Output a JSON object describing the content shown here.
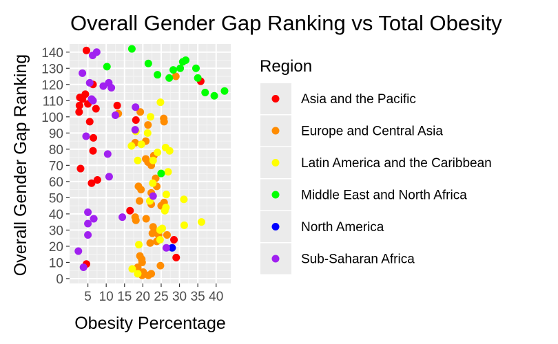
{
  "chart_data": {
    "type": "scatter",
    "title": "Overall Gender Gap Ranking vs Total Obesity",
    "xlabel": "Obesity Percentage",
    "ylabel": "Overall Gender Gap Ranking",
    "xlim": [
      0,
      44
    ],
    "ylim": [
      -3,
      145
    ],
    "x_ticks": [
      5,
      10,
      15,
      20,
      25,
      30,
      35,
      40
    ],
    "y_ticks": [
      0,
      10,
      20,
      30,
      40,
      50,
      60,
      70,
      80,
      90,
      100,
      110,
      120,
      130,
      140
    ],
    "grid": true,
    "legend": {
      "title": "Region",
      "placement": "right"
    },
    "series": [
      {
        "name": "Asia and the Pacific",
        "color": "#ff0000",
        "points": [
          [
            4.6,
            141
          ],
          [
            2.8,
            112
          ],
          [
            3.5,
            111
          ],
          [
            5.0,
            108
          ],
          [
            2.7,
            107
          ],
          [
            2.6,
            103
          ],
          [
            4.3,
            114
          ],
          [
            6.4,
            120
          ],
          [
            7.2,
            105
          ],
          [
            5.5,
            97
          ],
          [
            6.5,
            87
          ],
          [
            6.4,
            79
          ],
          [
            3.0,
            68
          ],
          [
            6.0,
            59
          ],
          [
            7.6,
            61
          ],
          [
            28.5,
            24
          ],
          [
            29.1,
            13
          ],
          [
            4.6,
            9
          ],
          [
            35.8,
            122
          ],
          [
            18.1,
            98
          ],
          [
            16.5,
            42
          ],
          [
            13.0,
            107
          ]
        ]
      },
      {
        "name": "Europe and Central Asia",
        "color": "#ff8c00",
        "points": [
          [
            29.0,
            125
          ],
          [
            13.3,
            102
          ],
          [
            19.3,
            103
          ],
          [
            21.4,
            95
          ],
          [
            25.8,
            97
          ],
          [
            25.7,
            99
          ],
          [
            17.9,
            84
          ],
          [
            20.8,
            85
          ],
          [
            23.0,
            76
          ],
          [
            20.8,
            74
          ],
          [
            21.4,
            72
          ],
          [
            22.3,
            70
          ],
          [
            18.8,
            57
          ],
          [
            19.5,
            55
          ],
          [
            23.5,
            62
          ],
          [
            23.8,
            57
          ],
          [
            22.3,
            53
          ],
          [
            19.1,
            48
          ],
          [
            22.3,
            46
          ],
          [
            25.8,
            47
          ],
          [
            25.0,
            45
          ],
          [
            17.9,
            38
          ],
          [
            20.9,
            37
          ],
          [
            18.1,
            36
          ],
          [
            22.8,
            32
          ],
          [
            23.2,
            29
          ],
          [
            22.6,
            28
          ],
          [
            24.3,
            27
          ],
          [
            23.8,
            23
          ],
          [
            22.0,
            22
          ],
          [
            19.2,
            14
          ],
          [
            19.7,
            12
          ],
          [
            19.8,
            10
          ],
          [
            18.6,
            7
          ],
          [
            20.1,
            4
          ],
          [
            19.3,
            4
          ],
          [
            19.8,
            2
          ],
          [
            21.5,
            2
          ],
          [
            22.3,
            3
          ],
          [
            24.8,
            8
          ],
          [
            26.6,
            27
          ]
        ]
      },
      {
        "name": "Latin America and the Caribbean",
        "color": "#ffff00",
        "points": [
          [
            24.8,
            109
          ],
          [
            22.1,
            100
          ],
          [
            21.3,
            90
          ],
          [
            18.1,
            91
          ],
          [
            16.9,
            82
          ],
          [
            19.6,
            83
          ],
          [
            26.2,
            81
          ],
          [
            27.3,
            79
          ],
          [
            24.0,
            78
          ],
          [
            18.6,
            73
          ],
          [
            22.8,
            73
          ],
          [
            25.0,
            65
          ],
          [
            26.9,
            66
          ],
          [
            22.7,
            59
          ],
          [
            26.4,
            52
          ],
          [
            31.2,
            49
          ],
          [
            21.9,
            48
          ],
          [
            26.0,
            42
          ],
          [
            26.3,
            44
          ],
          [
            31.3,
            33
          ],
          [
            25.3,
            31
          ],
          [
            24.7,
            30
          ],
          [
            18.9,
            21
          ],
          [
            17.1,
            6
          ],
          [
            36.0,
            35
          ],
          [
            24.7,
            24
          ],
          [
            18.6,
            3
          ]
        ]
      },
      {
        "name": "Middle East and North Africa",
        "color": "#00ff00",
        "points": [
          [
            17.0,
            142
          ],
          [
            21.5,
            133
          ],
          [
            27.2,
            124
          ],
          [
            24.0,
            126
          ],
          [
            28.3,
            129
          ],
          [
            30.9,
            134
          ],
          [
            31.7,
            135
          ],
          [
            30.2,
            130
          ],
          [
            34.5,
            130
          ],
          [
            35.0,
            124
          ],
          [
            37.0,
            115
          ],
          [
            39.5,
            113
          ],
          [
            42.3,
            116
          ],
          [
            10.2,
            131
          ],
          [
            25.0,
            65
          ]
        ]
      },
      {
        "name": "North America",
        "color": "#0000ff",
        "points": [
          [
            28.0,
            19
          ]
        ]
      },
      {
        "name": "Sub-Saharan Africa",
        "color": "#a020f0",
        "points": [
          [
            6.3,
            138
          ],
          [
            7.4,
            140
          ],
          [
            3.5,
            127
          ],
          [
            5.5,
            121
          ],
          [
            9.2,
            119
          ],
          [
            10.7,
            121
          ],
          [
            11.4,
            118
          ],
          [
            6.0,
            111
          ],
          [
            6.4,
            110
          ],
          [
            12.5,
            101
          ],
          [
            18.0,
            106
          ],
          [
            4.5,
            88
          ],
          [
            10.4,
            77
          ],
          [
            10.8,
            63
          ],
          [
            17.9,
            92
          ],
          [
            22.8,
            51
          ],
          [
            5.0,
            41
          ],
          [
            5.0,
            34
          ],
          [
            6.6,
            37
          ],
          [
            14.4,
            38
          ],
          [
            5.0,
            27
          ],
          [
            2.4,
            17
          ],
          [
            3.8,
            7
          ],
          [
            26.4,
            19
          ]
        ]
      }
    ]
  }
}
